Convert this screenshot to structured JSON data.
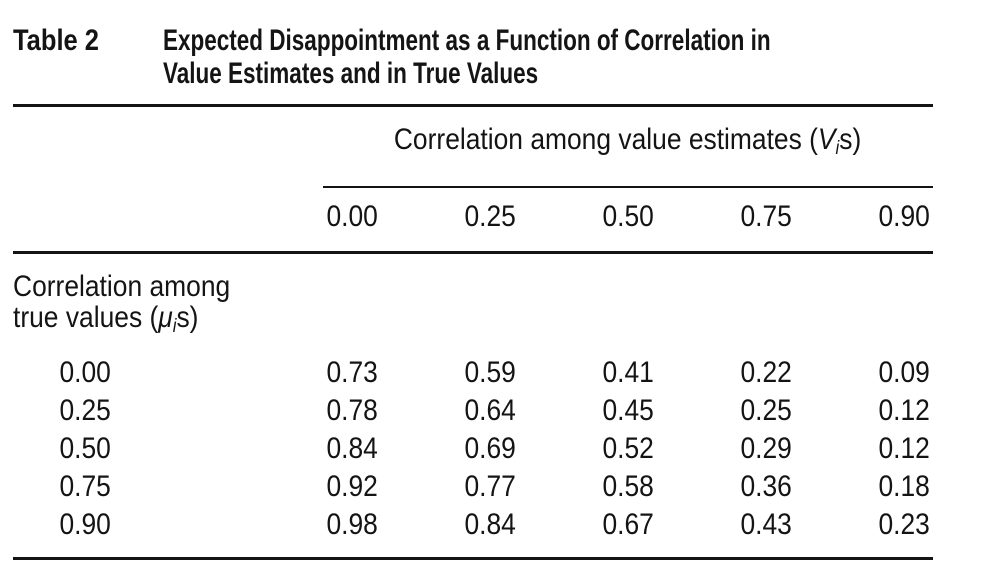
{
  "title": {
    "label": "Table 2",
    "line1": "Expected Disappointment as a Function of Correlation in",
    "line2": "Value Estimates and in True Values"
  },
  "spanner": {
    "prefix": "Correlation among value estimates (",
    "variable": "V",
    "subscript": "i",
    "suffix": "s)"
  },
  "stub_header": {
    "line1": "Correlation among",
    "line2_prefix": "true values (",
    "line2_variable": "μ",
    "line2_subscript": "i",
    "line2_suffix": "s)"
  },
  "columns": [
    "0.00",
    "0.25",
    "0.50",
    "0.75",
    "0.90"
  ],
  "rows": [
    {
      "label": "0.00",
      "values": [
        "0.73",
        "0.59",
        "0.41",
        "0.22",
        "0.09"
      ]
    },
    {
      "label": "0.25",
      "values": [
        "0.78",
        "0.64",
        "0.45",
        "0.25",
        "0.12"
      ]
    },
    {
      "label": "0.50",
      "values": [
        "0.84",
        "0.69",
        "0.52",
        "0.29",
        "0.12"
      ]
    },
    {
      "label": "0.75",
      "values": [
        "0.92",
        "0.77",
        "0.58",
        "0.36",
        "0.18"
      ]
    },
    {
      "label": "0.90",
      "values": [
        "0.98",
        "0.84",
        "0.67",
        "0.43",
        "0.23"
      ]
    }
  ],
  "colors": {
    "text": "#141414",
    "background": "#ffffff",
    "rule": "#141414"
  }
}
